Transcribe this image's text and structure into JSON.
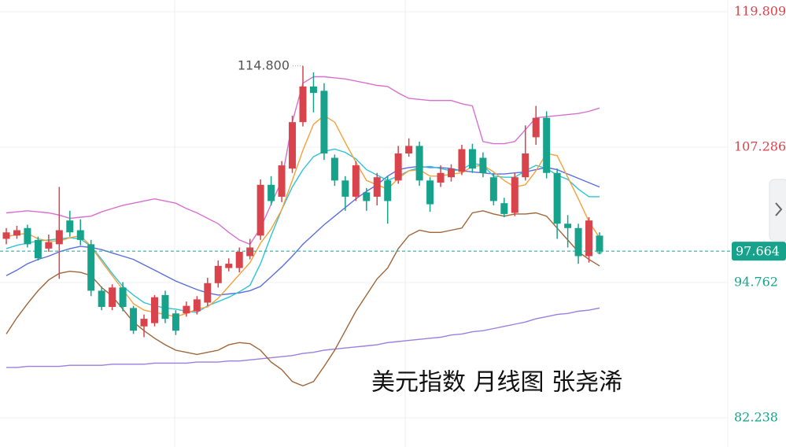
{
  "chart_data": {
    "type": "candlestick",
    "annotation": "美元指数 月线图 张尧浠",
    "up_color": "#d9434b",
    "down_color": "#17a38b",
    "ylim": [
      79.54,
      120.9
    ],
    "yticks": [
      82.238,
      94.762,
      107.286,
      119.809
    ],
    "grid": true,
    "last_price": 97.664,
    "max_label": {
      "value": 114.8,
      "label": "114.800"
    },
    "open": [
      98.8,
      99.1,
      99.8,
      98.7,
      97.9,
      98.3,
      100.5,
      99.6,
      98.3,
      94.0,
      92.5,
      94.3,
      92.4,
      90.7,
      91.0,
      93.6,
      91.9,
      91.9,
      92.1,
      92.9,
      94.7,
      96.1,
      96.1,
      97.2,
      99.1,
      103.8,
      102.7,
      105.3,
      109.6,
      112.9,
      112.5,
      106.3,
      104.2,
      102.7,
      103.1,
      102.7,
      104.2,
      104.2,
      106.7,
      107.4,
      104.2,
      104.0,
      104.5,
      105.0,
      107.1,
      106.3,
      104.5,
      102.1,
      101.2,
      104.5,
      108.2,
      110.0,
      104.9,
      100.2,
      99.8,
      97.2,
      99.1
    ],
    "high": [
      99.8,
      100.0,
      100.1,
      99.0,
      99.2,
      103.6,
      101.4,
      100.6,
      98.7,
      94.4,
      94.6,
      94.8,
      92.6,
      91.8,
      93.6,
      94.0,
      92.2,
      93.0,
      93.5,
      95.2,
      96.8,
      97.0,
      98.0,
      98.8,
      104.3,
      104.6,
      106.0,
      110.2,
      114.8,
      114.2,
      113.2,
      106.6,
      104.6,
      106.0,
      103.5,
      104.9,
      104.6,
      107.4,
      108.1,
      107.8,
      104.5,
      105.6,
      105.7,
      107.5,
      107.6,
      106.8,
      104.9,
      102.6,
      104.9,
      109.3,
      111.1,
      110.6,
      105.3,
      101.0,
      100.2,
      100.8,
      99.4
    ],
    "low": [
      98.3,
      98.8,
      98.0,
      96.8,
      97.6,
      95.1,
      99.0,
      98.2,
      93.5,
      92.2,
      92.2,
      92.1,
      90.0,
      89.7,
      90.7,
      91.0,
      89.9,
      91.6,
      91.8,
      92.6,
      94.3,
      95.8,
      95.7,
      96.9,
      98.7,
      101.9,
      102.2,
      104.9,
      109.2,
      110.5,
      106.1,
      103.7,
      101.4,
      102.3,
      101.4,
      101.9,
      100.2,
      103.9,
      106.4,
      103.7,
      101.3,
      103.6,
      104.1,
      104.7,
      104.9,
      104.5,
      101.9,
      100.8,
      100.9,
      104.2,
      107.5,
      104.4,
      98.8,
      98.0,
      96.5,
      96.6,
      97.4
    ],
    "close": [
      99.4,
      99.6,
      98.3,
      97.0,
      98.5,
      99.6,
      99.4,
      98.7,
      94.0,
      92.5,
      94.3,
      92.5,
      90.3,
      91.4,
      93.4,
      91.4,
      90.3,
      92.6,
      93.2,
      94.7,
      96.3,
      96.5,
      97.6,
      98.0,
      103.8,
      102.3,
      105.6,
      109.6,
      112.9,
      112.3,
      106.7,
      104.2,
      102.7,
      105.6,
      102.3,
      104.5,
      102.3,
      106.7,
      107.4,
      104.2,
      102.0,
      104.9,
      105.3,
      107.1,
      105.3,
      104.9,
      102.3,
      101.1,
      104.5,
      106.7,
      110.0,
      104.9,
      100.2,
      99.8,
      97.2,
      100.5,
      97.664
    ],
    "lines": [
      {
        "color": "#9b7fe0",
        "values": [
          86.9,
          86.9,
          87.0,
          87.0,
          87.0,
          87.0,
          87.1,
          87.1,
          87.1,
          87.1,
          87.2,
          87.2,
          87.2,
          87.2,
          87.3,
          87.3,
          87.3,
          87.3,
          87.4,
          87.4,
          87.4,
          87.5,
          87.5,
          87.6,
          87.7,
          87.8,
          87.9,
          88.0,
          88.2,
          88.3,
          88.5,
          88.6,
          88.7,
          88.8,
          88.9,
          89.0,
          89.2,
          89.3,
          89.4,
          89.5,
          89.6,
          89.7,
          89.9,
          90.0,
          90.2,
          90.3,
          90.5,
          90.7,
          90.9,
          91.1,
          91.4,
          91.6,
          91.8,
          91.9,
          92.1,
          92.2,
          92.4
        ]
      },
      {
        "color": "#d86fd0",
        "values": [
          101.2,
          101.3,
          101.4,
          101.3,
          101.2,
          101.0,
          100.7,
          100.8,
          100.9,
          101.3,
          101.6,
          101.9,
          102.1,
          102.3,
          102.5,
          102.3,
          102.1,
          101.6,
          101.2,
          100.7,
          100.2,
          99.4,
          98.7,
          98.3,
          99.8,
          102.0,
          104.2,
          109.6,
          113.2,
          113.8,
          113.8,
          113.7,
          113.6,
          113.4,
          113.2,
          113.0,
          112.9,
          112.3,
          111.8,
          111.7,
          111.6,
          111.6,
          111.6,
          111.3,
          111.1,
          107.8,
          107.6,
          107.6,
          107.8,
          108.9,
          110.0,
          110.1,
          110.2,
          110.3,
          110.4,
          110.6,
          110.9
        ]
      },
      {
        "color": "#a0663a",
        "values": [
          90.0,
          91.5,
          92.8,
          94.0,
          95.0,
          95.6,
          95.8,
          95.7,
          95.4,
          94.3,
          93.5,
          92.3,
          91.1,
          90.3,
          89.6,
          89.0,
          88.5,
          88.3,
          88.1,
          88.3,
          88.5,
          89.0,
          89.2,
          89.1,
          88.5,
          87.4,
          86.7,
          85.6,
          85.2,
          85.6,
          87.0,
          88.5,
          90.3,
          92.1,
          93.6,
          95.1,
          96.1,
          97.9,
          99.1,
          99.6,
          99.4,
          99.4,
          99.6,
          99.8,
          101.2,
          101.4,
          101.1,
          100.9,
          101.1,
          101.1,
          101.2,
          100.9,
          99.8,
          98.7,
          97.6,
          96.9,
          96.3
        ]
      },
      {
        "color": "#5b6ee0",
        "values": [
          95.4,
          95.9,
          96.5,
          96.9,
          97.2,
          97.6,
          97.9,
          98.1,
          98.0,
          97.8,
          97.5,
          97.2,
          96.9,
          96.4,
          95.9,
          95.4,
          94.9,
          94.5,
          94.1,
          93.8,
          93.6,
          93.7,
          93.8,
          94.0,
          94.4,
          95.3,
          96.2,
          97.2,
          98.3,
          99.2,
          100.1,
          100.9,
          101.7,
          102.5,
          103.2,
          103.8,
          104.6,
          105.2,
          105.4,
          105.5,
          105.4,
          105.4,
          105.3,
          105.1,
          105.0,
          104.9,
          104.8,
          104.8,
          104.9,
          105.0,
          105.2,
          105.4,
          105.2,
          104.8,
          104.4,
          104.0,
          103.6
        ]
      },
      {
        "color": "#2ec4d6",
        "values": [
          97.9,
          98.2,
          98.4,
          98.6,
          98.7,
          98.8,
          98.9,
          98.8,
          98.1,
          96.9,
          95.6,
          94.4,
          93.6,
          92.9,
          92.6,
          92.4,
          92.3,
          92.1,
          92.0,
          92.6,
          93.0,
          93.4,
          93.9,
          94.5,
          96.5,
          99.1,
          101.5,
          103.6,
          105.2,
          106.4,
          106.9,
          107.1,
          106.8,
          106.2,
          105.2,
          104.7,
          104.2,
          104.6,
          105.1,
          105.4,
          105.5,
          105.3,
          105.1,
          105.2,
          105.8,
          105.6,
          104.6,
          104.5,
          104.5,
          105.1,
          105.6,
          105.3,
          104.7,
          104.3,
          103.4,
          102.7,
          102.7
        ]
      },
      {
        "color": "#f5a03a",
        "values": [
          99.0,
          99.2,
          99.3,
          98.8,
          98.6,
          98.6,
          98.9,
          99.1,
          98.1,
          96.7,
          95.4,
          94.1,
          92.8,
          92.2,
          92.0,
          91.8,
          91.6,
          91.9,
          92.3,
          92.5,
          93.3,
          94.4,
          95.5,
          96.6,
          98.4,
          99.7,
          101.5,
          104.2,
          107.0,
          109.4,
          110.2,
          109.6,
          107.7,
          105.9,
          104.2,
          103.8,
          103.4,
          104.4,
          105.1,
          105.2,
          104.6,
          104.6,
          104.8,
          104.9,
          105.5,
          105.6,
          105.0,
          104.2,
          103.6,
          103.8,
          105.1,
          106.7,
          106.5,
          104.5,
          102.5,
          100.4,
          98.9
        ]
      }
    ]
  }
}
